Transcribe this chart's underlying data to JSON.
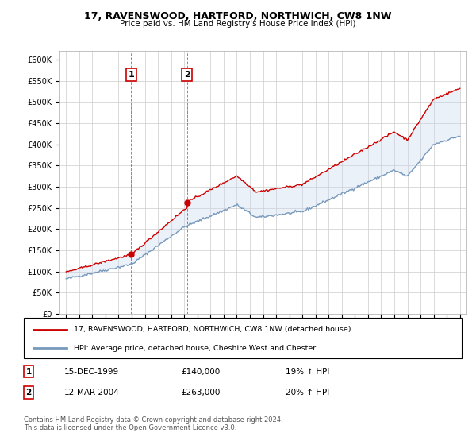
{
  "title": "17, RAVENSWOOD, HARTFORD, NORTHWICH, CW8 1NW",
  "subtitle": "Price paid vs. HM Land Registry's House Price Index (HPI)",
  "legend_line1": "17, RAVENSWOOD, HARTFORD, NORTHWICH, CW8 1NW (detached house)",
  "legend_line2": "HPI: Average price, detached house, Cheshire West and Chester",
  "sale1_label": "1",
  "sale1_date": "15-DEC-1999",
  "sale1_price": "£140,000",
  "sale1_hpi": "19% ↑ HPI",
  "sale1_year": 1999.96,
  "sale1_value": 140000,
  "sale2_label": "2",
  "sale2_date": "12-MAR-2004",
  "sale2_price": "£263,000",
  "sale2_hpi": "20% ↑ HPI",
  "sale2_year": 2004.2,
  "sale2_value": 263000,
  "red_color": "#cc0000",
  "blue_color": "#7799bb",
  "blue_fill": "#c8d8ee",
  "grid_color": "#cccccc",
  "background_color": "#ffffff",
  "plot_bg_color": "#ffffff",
  "footnote": "Contains HM Land Registry data © Crown copyright and database right 2024.\nThis data is licensed under the Open Government Licence v3.0.",
  "ylim_min": 0,
  "ylim_max": 620000,
  "yticks": [
    0,
    50000,
    100000,
    150000,
    200000,
    250000,
    300000,
    350000,
    400000,
    450000,
    500000,
    550000,
    600000
  ],
  "ytick_labels": [
    "£0",
    "£50K",
    "£100K",
    "£150K",
    "£200K",
    "£250K",
    "£300K",
    "£350K",
    "£400K",
    "£450K",
    "£500K",
    "£550K",
    "£600K"
  ],
  "xlim_min": 1994.5,
  "xlim_max": 2025.5
}
